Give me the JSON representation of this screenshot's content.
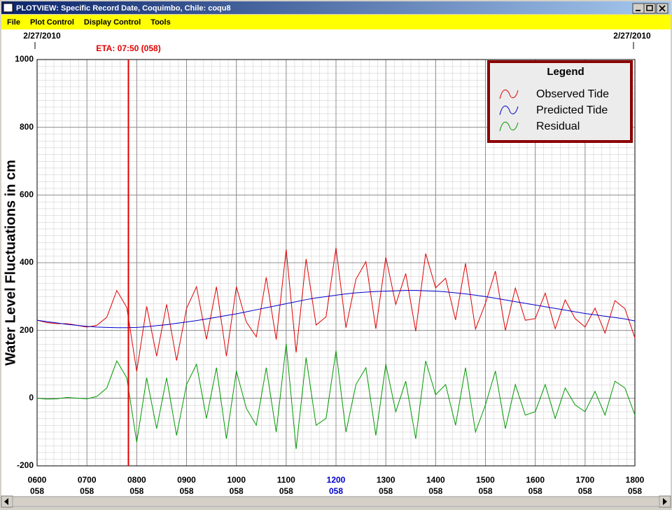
{
  "window": {
    "title": "PLOTVIEW: Specific Record Date, Coquimbo, Chile: coqu8"
  },
  "menu": [
    "File",
    "Plot Control",
    "Display Control",
    "Tools"
  ],
  "chart_data": {
    "type": "line",
    "start_date": "2/27/2010",
    "end_date": "2/27/2010",
    "annotation": {
      "text": "ETA: 07:50 (058)",
      "x": 7.8333,
      "color": "#e00000"
    },
    "ylabel": "Water Level Fluctuations in cm",
    "legend_title": "Legend",
    "legend": "upper right",
    "grid": true,
    "xlim": [
      6,
      18
    ],
    "xticks": [
      {
        "value": 6,
        "label": "0600"
      },
      {
        "value": 7,
        "label": "0700"
      },
      {
        "value": 8,
        "label": "0800"
      },
      {
        "value": 9,
        "label": "0900"
      },
      {
        "value": 10,
        "label": "1000"
      },
      {
        "value": 11,
        "label": "1100"
      },
      {
        "value": 12,
        "label": "1200"
      },
      {
        "value": 13,
        "label": "1300"
      },
      {
        "value": 14,
        "label": "1400"
      },
      {
        "value": 15,
        "label": "1500"
      },
      {
        "value": 16,
        "label": "1600"
      },
      {
        "value": 17,
        "label": "1700"
      },
      {
        "value": 18,
        "label": "1800"
      }
    ],
    "xtick_sublabels": [
      "058",
      "058",
      "058",
      "058",
      "058",
      "058",
      "058",
      "058",
      "058",
      "058",
      "058",
      "058",
      "058"
    ],
    "highlighted_tick": 12,
    "highlight_color": "#0000cc",
    "ylim": [
      -200,
      1000
    ],
    "yticks": [
      -200,
      0,
      200,
      400,
      600,
      800,
      1000
    ],
    "x": [
      6,
      6.2,
      6.4,
      6.6,
      6.8,
      7,
      7.2,
      7.4,
      7.6,
      7.8,
      8,
      8.2,
      8.4,
      8.6,
      8.8,
      9,
      9.2,
      9.4,
      9.6,
      9.8,
      10,
      10.2,
      10.4,
      10.6,
      10.8,
      11,
      11.2,
      11.4,
      11.6,
      11.8,
      12,
      12.2,
      12.4,
      12.6,
      12.8,
      13,
      13.2,
      13.4,
      13.6,
      13.8,
      14,
      14.2,
      14.4,
      14.6,
      14.8,
      15,
      15.2,
      15.4,
      15.6,
      15.8,
      16,
      16.2,
      16.4,
      16.6,
      16.8,
      17,
      17.2,
      17.4,
      17.6,
      17.8,
      18
    ],
    "series": [
      {
        "name": "Observed Tide",
        "color": "#e00000",
        "values": [
          230,
          223,
          220,
          220,
          215,
          210,
          215,
          239,
          318,
          268,
          79,
          271,
          124,
          277,
          111,
          265,
          329,
          174,
          329,
          124,
          329,
          225,
          181,
          357,
          173,
          439,
          135,
          411,
          216,
          240,
          444,
          208,
          351,
          403,
          205,
          416,
          277,
          368,
          198,
          427,
          326,
          354,
          231,
          398,
          204,
          280,
          375,
          200,
          325,
          230,
          235,
          310,
          205,
          290,
          235,
          210,
          266,
          192,
          288,
          264,
          178
        ]
      },
      {
        "name": "Predicted Tide",
        "color": "#0000cc",
        "values": [
          230,
          226,
          222,
          218,
          215,
          212,
          210,
          209,
          208,
          208,
          209,
          211,
          214,
          217,
          221,
          225,
          229,
          234,
          239,
          244,
          249,
          255,
          261,
          267,
          273,
          279,
          285,
          291,
          296,
          300,
          304,
          308,
          311,
          313,
          315,
          316,
          317,
          318,
          318,
          317,
          316,
          314,
          311,
          308,
          304,
          300,
          295,
          290,
          285,
          280,
          275,
          270,
          265,
          260,
          255,
          250,
          246,
          242,
          238,
          234,
          228
        ]
      },
      {
        "name": "Residual",
        "color": "#009900",
        "values": [
          0,
          -3,
          -2,
          2,
          0,
          -2,
          5,
          30,
          110,
          60,
          -130,
          60,
          -90,
          60,
          -110,
          40,
          100,
          -60,
          90,
          -120,
          80,
          -30,
          -80,
          90,
          -100,
          160,
          -150,
          120,
          -80,
          -60,
          140,
          -100,
          40,
          90,
          -110,
          100,
          -40,
          50,
          -120,
          110,
          10,
          40,
          -80,
          90,
          -100,
          -20,
          80,
          -90,
          40,
          -50,
          -40,
          40,
          -60,
          30,
          -20,
          -40,
          20,
          -50,
          50,
          30,
          -50
        ]
      }
    ]
  }
}
